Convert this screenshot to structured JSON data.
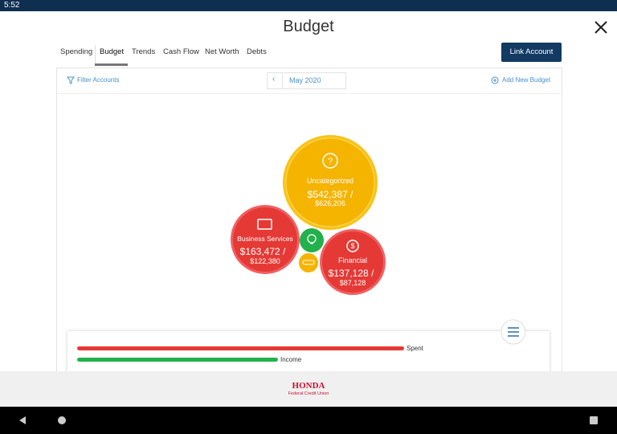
{
  "status_bar": {
    "time": "5:52"
  },
  "header": {
    "title": "Budget"
  },
  "tabs": [
    "Spending",
    "Budget",
    "Trends",
    "Cash Flow",
    "Net Worth",
    "Debts"
  ],
  "active_tab": "Budget",
  "link_button": "Link Account",
  "toolbar": {
    "filter": "Filter Accounts",
    "month": "May 2020",
    "add": "Add New Budget"
  },
  "bubbles": [
    {
      "icon": "?",
      "label": "Uncategorized",
      "spent": "$542,387 /",
      "budget": "$626,206"
    },
    {
      "label": "Business Services",
      "spent": "$163,472 /",
      "budget": "$122,380"
    },
    {
      "icon": "$",
      "label": "Financial",
      "spent": "$137,128 /",
      "budget": "$87,128"
    }
  ],
  "summary": {
    "spent": "Spent",
    "income": "Income"
  },
  "footer": {
    "logo": "HONDA",
    "logo_sub": "Federal Credit Union"
  }
}
